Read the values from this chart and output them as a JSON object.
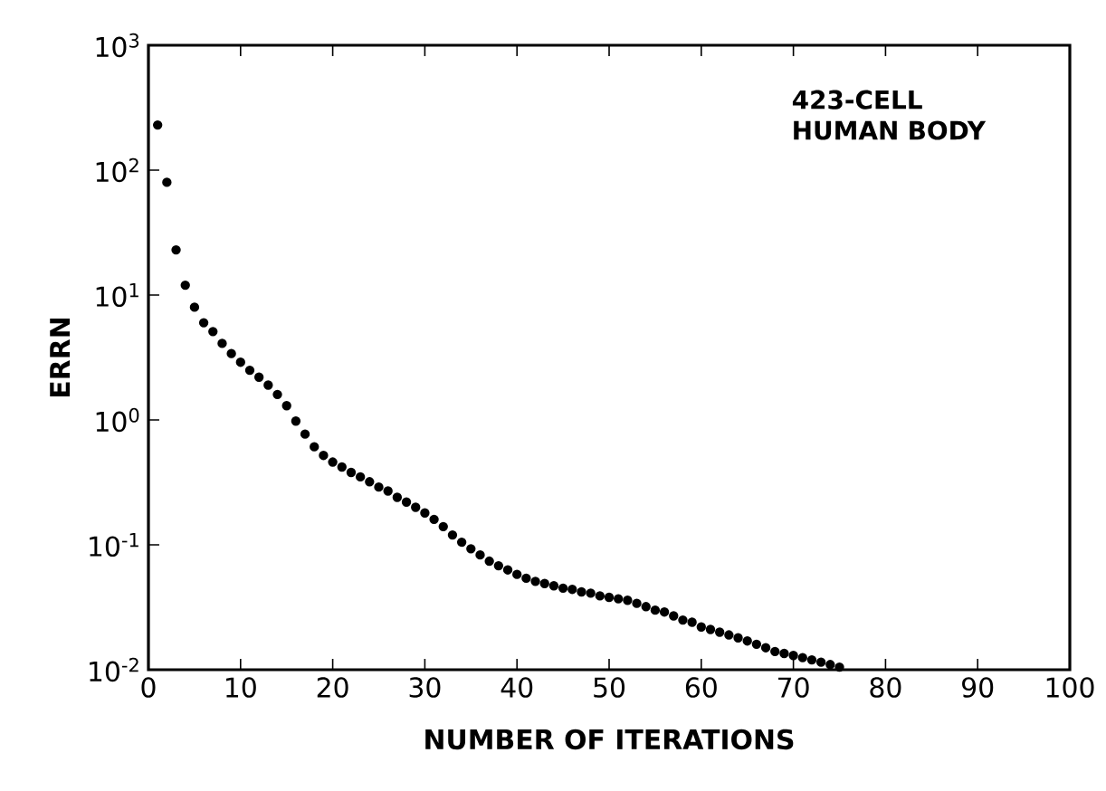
{
  "chart_data": {
    "type": "scatter",
    "xlabel": "NUMBER OF ITERATIONS",
    "ylabel": "ERRN",
    "annotations": [
      "423-CELL HUMAN BODY"
    ],
    "log": "y",
    "marker": "circle",
    "xlim": [
      0,
      100
    ],
    "xticks": [
      0,
      10,
      20,
      30,
      40,
      50,
      60,
      70,
      80,
      90,
      100
    ],
    "ylim": [
      0.01,
      1000
    ],
    "yticks": [
      {
        "value": 0.01,
        "label": "10$^{-2}$"
      },
      {
        "value": 0.1,
        "label": "10$^{-1}$"
      },
      {
        "value": 1,
        "label": "10$^{0}$"
      },
      {
        "value": 10,
        "label": "10$^{1}$"
      },
      {
        "value": 100,
        "label": "10$^{2}$"
      },
      {
        "value": 1000,
        "label": "10$^{3}$"
      }
    ],
    "series": [
      {
        "color": "#000000",
        "x": [
          1,
          2,
          3,
          4,
          5,
          6,
          7,
          8,
          9,
          10,
          11,
          12,
          13,
          14,
          15,
          16,
          17,
          18,
          19,
          20,
          21,
          22,
          23,
          24,
          25,
          26,
          27,
          28,
          29,
          30,
          31,
          32,
          33,
          34,
          35,
          36,
          37,
          38,
          39,
          40,
          41,
          42,
          43,
          44,
          45,
          46,
          47,
          48,
          49,
          50,
          51,
          52,
          53,
          54,
          55,
          56,
          57,
          58,
          59,
          60,
          61,
          62,
          63,
          64,
          65,
          66,
          67,
          68,
          69,
          70,
          71,
          72,
          73,
          74,
          75
        ],
        "values": [
          230,
          80,
          23,
          12,
          8,
          6,
          5.1,
          4.1,
          3.4,
          2.9,
          2.5,
          2.2,
          1.9,
          1.6,
          1.3,
          0.98,
          0.77,
          0.61,
          0.52,
          0.46,
          0.42,
          0.38,
          0.35,
          0.32,
          0.29,
          0.27,
          0.24,
          0.22,
          0.2,
          0.18,
          0.16,
          0.14,
          0.12,
          0.105,
          0.093,
          0.083,
          0.074,
          0.068,
          0.063,
          0.058,
          0.054,
          0.051,
          0.049,
          0.047,
          0.045,
          0.044,
          0.042,
          0.041,
          0.039,
          0.038,
          0.037,
          0.036,
          0.034,
          0.032,
          0.03,
          0.029,
          0.027,
          0.025,
          0.024,
          0.022,
          0.021,
          0.02,
          0.019,
          0.018,
          0.017,
          0.016,
          0.015,
          0.014,
          0.0135,
          0.013,
          0.0125,
          0.012,
          0.0115,
          0.011,
          0.0105
        ]
      }
    ]
  }
}
